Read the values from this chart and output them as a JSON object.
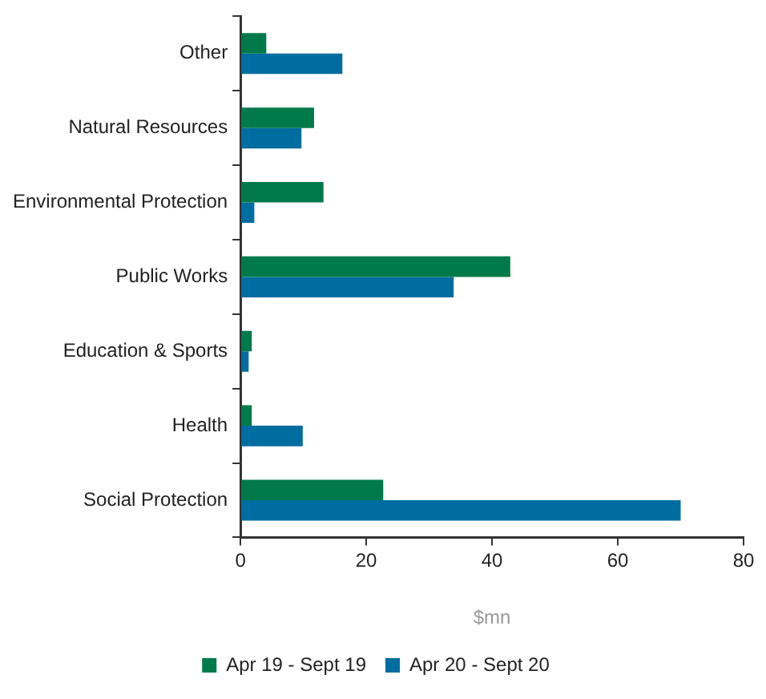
{
  "chart_data": {
    "type": "bar",
    "orientation": "horizontal",
    "categories": [
      "Other",
      "Natural Resources",
      "Environmental Protection",
      "Public Works",
      "Education & Sports",
      "Health",
      "Social Protection"
    ],
    "series": [
      {
        "name": "Apr 19 - Sept 19",
        "color": "#007a4a",
        "values": [
          4.1,
          11.7,
          13.2,
          42.9,
          1.8,
          1.8,
          22.7
        ]
      },
      {
        "name": "Apr 20 - Sept 20",
        "color": "#006da0",
        "values": [
          16.2,
          9.7,
          2.2,
          33.9,
          1.3,
          9.9,
          70
        ]
      }
    ],
    "xlabel": "$mn",
    "xlim": [
      0,
      80
    ],
    "xticks": [
      0,
      20,
      40,
      60,
      80
    ],
    "grid": false,
    "legend": "bottom"
  }
}
